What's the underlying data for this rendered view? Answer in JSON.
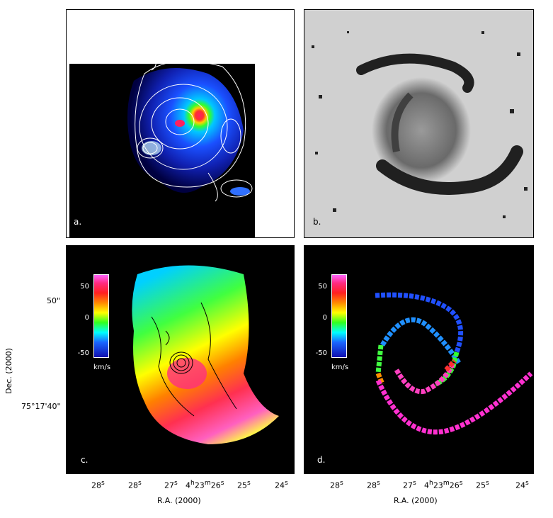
{
  "panels": {
    "a": {
      "label": "a."
    },
    "b": {
      "label": "b."
    },
    "c": {
      "label": "c."
    },
    "d": {
      "label": "d."
    }
  },
  "colorbar": {
    "ticks": [
      "50",
      "0",
      "-50"
    ],
    "unit": "km/s"
  },
  "axes": {
    "x_ticks": [
      "28",
      "28",
      "27",
      "4",
      "23",
      "26",
      "25",
      "24"
    ],
    "x_tick_superscripts": [
      "s",
      "s",
      "s",
      "h",
      "m",
      "s",
      "s",
      "s"
    ],
    "x_title": "R.A. (2000)",
    "y_ticks": [
      "50\"",
      "75°17'40\""
    ],
    "y_title": "Dec. (2000)"
  },
  "colors": {
    "background": "#000000",
    "contour_light": "#ffffff",
    "contour_dark": "#000000",
    "panel_b_background": "#d0d0d0"
  }
}
